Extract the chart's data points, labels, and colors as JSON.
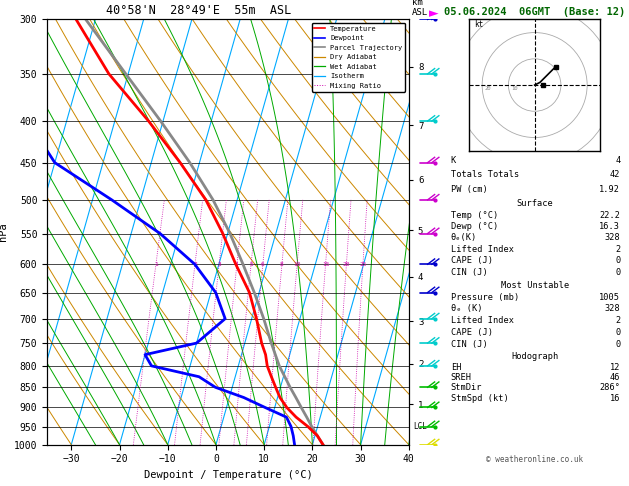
{
  "title_left": "40°58'N  28°49'E  55m  ASL",
  "title_right": "05.06.2024  06GMT  (Base: 12)",
  "xlabel": "Dewpoint / Temperature (°C)",
  "ylabel_left": "hPa",
  "pressure_ticks": [
    300,
    350,
    400,
    450,
    500,
    550,
    600,
    650,
    700,
    750,
    800,
    850,
    900,
    950,
    1000
  ],
  "temp_x": [
    -30,
    -20,
    -10,
    0,
    10,
    20,
    30,
    40
  ],
  "km_ticks": [
    1,
    2,
    3,
    4,
    5,
    6,
    7,
    8
  ],
  "km_pressures": [
    892,
    795,
    705,
    622,
    545,
    472,
    405,
    343
  ],
  "mixing_ratio_vals": [
    1,
    2,
    3,
    4,
    5,
    6,
    8,
    10,
    15,
    20,
    25
  ],
  "skew_factor": 25,
  "p_min": 300,
  "p_max": 1000,
  "t_min": -35,
  "t_max": 40,
  "isotherm_color": "#00aaff",
  "dry_adiabat_color": "#cc8800",
  "wet_adiabat_color": "#00aa00",
  "mixing_ratio_color": "#cc00aa",
  "temp_color": "red",
  "dewp_color": "blue",
  "parcel_color": "#888888",
  "temp_profile_p": [
    1000,
    975,
    950,
    925,
    900,
    875,
    850,
    825,
    800,
    775,
    750,
    700,
    650,
    600,
    550,
    500,
    450,
    400,
    350,
    300
  ],
  "temp_profile_t": [
    22.2,
    20.5,
    18.0,
    15.0,
    12.5,
    10.5,
    9.0,
    7.5,
    6.0,
    5.0,
    3.5,
    1.0,
    -2.0,
    -6.5,
    -11.0,
    -16.5,
    -24.0,
    -33.0,
    -44.0,
    -54.0
  ],
  "dewp_profile_p": [
    1000,
    975,
    950,
    925,
    900,
    875,
    850,
    825,
    800,
    775,
    750,
    700,
    650,
    600,
    550,
    500,
    450,
    400,
    350,
    300
  ],
  "dewp_profile_t": [
    16.3,
    15.5,
    14.5,
    13.0,
    8.0,
    3.0,
    -3.5,
    -7.5,
    -18.0,
    -20.0,
    -10.0,
    -5.5,
    -9.0,
    -15.0,
    -24.0,
    -36.0,
    -50.0,
    -58.0,
    -65.0,
    -70.0
  ],
  "parcel_p": [
    1000,
    975,
    950,
    925,
    900,
    875,
    850,
    800,
    750,
    700,
    650,
    600,
    550,
    500,
    450,
    400,
    350,
    300
  ],
  "parcel_t": [
    22.2,
    20.5,
    18.8,
    17.2,
    15.5,
    13.8,
    12.0,
    8.5,
    5.5,
    2.5,
    -1.0,
    -5.0,
    -9.5,
    -15.0,
    -22.0,
    -30.5,
    -40.5,
    -52.0
  ],
  "lcl_p": 950,
  "wind_barbs_p": [
    1000,
    950,
    900,
    850,
    800,
    750,
    700,
    650,
    600,
    550,
    500,
    450,
    400,
    350,
    300
  ],
  "wind_barb_colors": [
    "yellow",
    "green",
    "green",
    "green",
    "cyan",
    "cyan",
    "cyan",
    "blue",
    "blue",
    "magenta",
    "magenta",
    "magenta",
    "cyan",
    "cyan",
    "blue"
  ],
  "hodo_u": [
    0,
    2,
    3,
    4,
    5,
    6,
    7,
    8
  ],
  "hodo_v": [
    0,
    1,
    2,
    3,
    4,
    5,
    6,
    7
  ],
  "storm_u": [
    3
  ],
  "storm_v": [
    0
  ],
  "info_panel": {
    "K": 4,
    "Totals_Totals": 42,
    "PW_cm": 1.92,
    "Surface_Temp": 22.2,
    "Surface_Dewp": 16.3,
    "Surface_ThetaE": 328,
    "Surface_LI": 2,
    "Surface_CAPE": 0,
    "Surface_CIN": 0,
    "MU_Pressure": 1005,
    "MU_ThetaE": 328,
    "MU_LI": 2,
    "MU_CAPE": 0,
    "MU_CIN": 0,
    "EH": 12,
    "SREH": 46,
    "StmDir": "286°",
    "StmSpd": 16
  }
}
